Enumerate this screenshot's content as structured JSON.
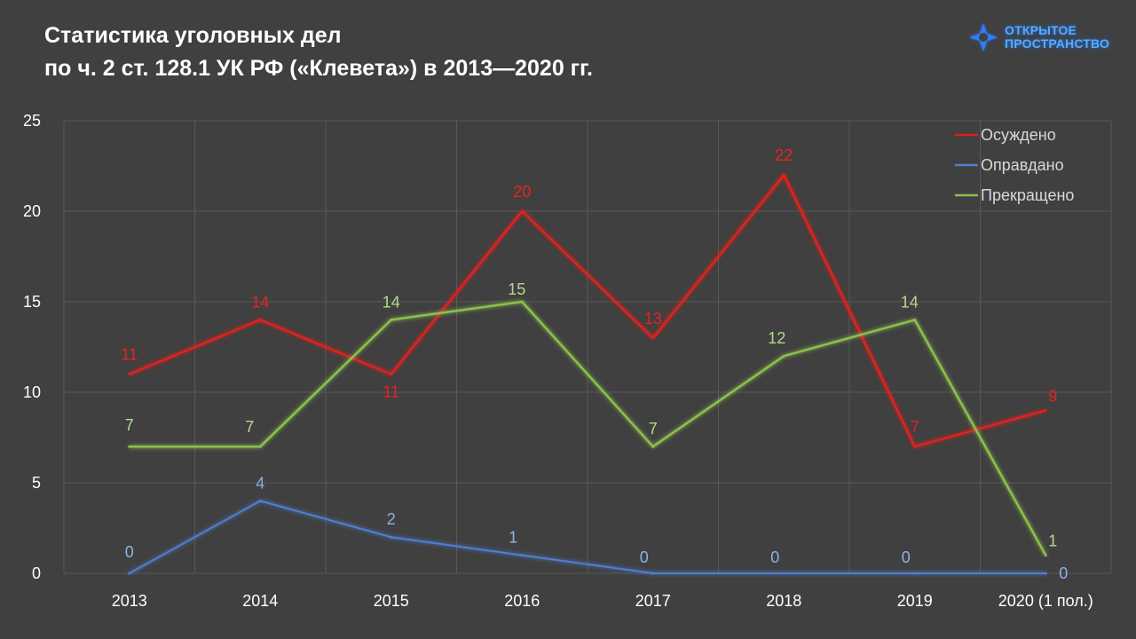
{
  "header": {
    "title_line1": "Статистика уголовных дел",
    "title_line2": "по ч. 2 ст. 128.1 УК РФ («Клевета») в 2013—2020 гг."
  },
  "logo": {
    "icon": "cross-star-logo-icon",
    "line1": "открытое",
    "line2": "пространство",
    "color": "#3d8bff"
  },
  "chart_data": {
    "type": "line",
    "categories": [
      "2013",
      "2014",
      "2015",
      "2016",
      "2017",
      "2018",
      "2019",
      "2020 (1 пол.)"
    ],
    "ylim": [
      0,
      25
    ],
    "yticks": [
      0,
      5,
      10,
      15,
      20,
      25
    ],
    "grid": true,
    "legend_position": "top-right",
    "series": [
      {
        "name": "Осуждено",
        "color": "#e0201f",
        "values": [
          11,
          14,
          11,
          20,
          13,
          22,
          7,
          9
        ]
      },
      {
        "name": "Оправдано",
        "color": "#4f7fd4",
        "values": [
          0,
          4,
          2,
          1,
          0,
          0,
          0,
          0
        ]
      },
      {
        "name": "Прекращено",
        "color": "#8cc04b",
        "values": [
          7,
          7,
          14,
          15,
          7,
          12,
          14,
          1
        ]
      }
    ]
  }
}
